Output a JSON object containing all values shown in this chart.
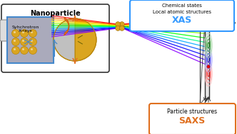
{
  "bg_color": "#f0f0f0",
  "title": "",
  "saxs_label": "SAXS",
  "saxs_sub": "Particle structures",
  "xas_label": "XAS",
  "xas_sub1": "Local atomic structures",
  "xas_sub2": "Chemical states",
  "nanoparticle_label": "Nanoparticle",
  "synchrotron_label": "Syhchrotron\nX-rays",
  "saxs_box_color": "#e07020",
  "xas_box_color": "#3399ff",
  "nano_box_color": "#333333",
  "rainbow_colors": [
    "#8B00FF",
    "#4400FF",
    "#0000FF",
    "#0055FF",
    "#00AAFF",
    "#00FF88",
    "#00FF00",
    "#88FF00",
    "#FFFF00",
    "#FFAA00",
    "#FF5500",
    "#FF0000"
  ],
  "figsize": [
    3.32,
    1.89
  ],
  "dpi": 100
}
